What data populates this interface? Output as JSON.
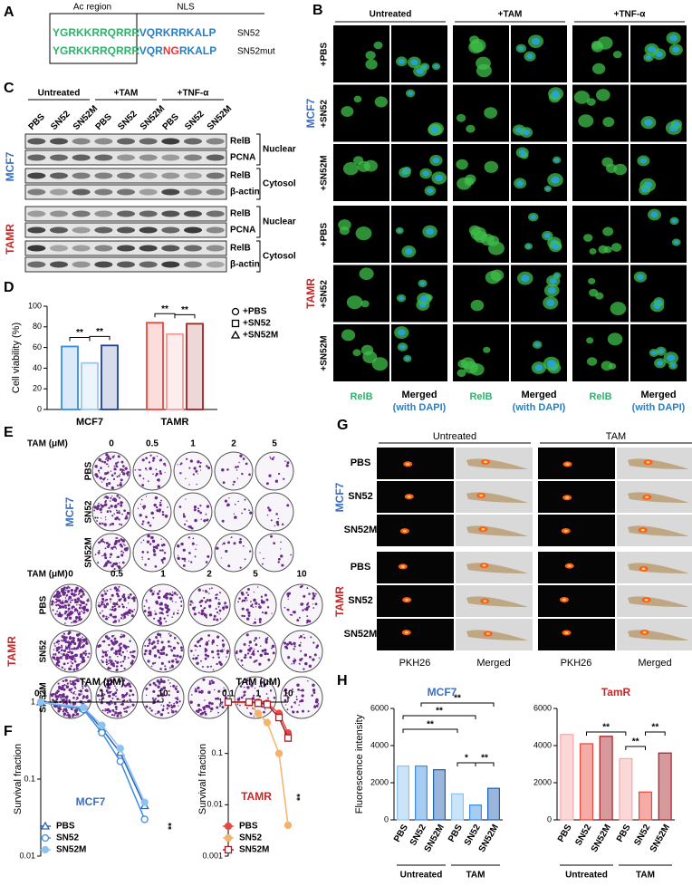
{
  "panel_letters": [
    "A",
    "B",
    "C",
    "D",
    "E",
    "F",
    "G",
    "H"
  ],
  "panel_a": {
    "region_labels": [
      "Ac region",
      "NLS"
    ],
    "sequences": [
      {
        "segments": [
          {
            "text": "YGRKKRRQRRR",
            "color": "#2db36b"
          },
          {
            "text": "VQRKRRKALP",
            "color": "#2a7fc1"
          }
        ],
        "name": "SN52"
      },
      {
        "segments": [
          {
            "text": "YGRKKRRQRRR",
            "color": "#2db36b"
          },
          {
            "text": "VQR",
            "color": "#2a7fc1"
          },
          {
            "text": "NG",
            "color": "#e53935"
          },
          {
            "text": "RKALP",
            "color": "#2a7fc1"
          }
        ],
        "name": "SN52mut"
      }
    ]
  },
  "panel_b": {
    "columns": [
      "Untreated",
      "+TAM",
      "+TNF-α"
    ],
    "cell_lines": [
      {
        "name": "MCF7",
        "color": "#3a6fc4"
      },
      {
        "name": "TAMR",
        "color": "#c62828"
      }
    ],
    "rows": [
      "+PBS",
      "+SN52",
      "+SN52M"
    ],
    "channel_labels": [
      "RelB",
      "Merged",
      "(with DAPI)"
    ]
  },
  "panel_c": {
    "groups": [
      "Untreated",
      "+TAM",
      "+TNF-α"
    ],
    "lanes": [
      "PBS",
      "SN52",
      "SN52M"
    ],
    "cell_lines": [
      {
        "name": "MCF7",
        "color": "#3a6fc4"
      },
      {
        "name": "TAMR",
        "color": "#c62828"
      }
    ],
    "bands": [
      "RelB",
      "PCNA",
      "RelB",
      "β-actin"
    ],
    "fractions": [
      "Nuclear",
      "Cytosol"
    ]
  },
  "panel_e": {
    "axis_label": "TAM (μM)",
    "blocks": [
      {
        "cell_line": "MCF7",
        "color": "#3a6fc4",
        "concentrations": [
          "0",
          "0.5",
          "1",
          "2",
          "5"
        ]
      },
      {
        "cell_line": "TAMR",
        "color": "#c62828",
        "concentrations": [
          "0",
          "0.5",
          "1",
          "2",
          "5",
          "10"
        ]
      }
    ],
    "rows": [
      "PBS",
      "SN52",
      "SN52M"
    ]
  },
  "panel_g": {
    "conditions": [
      "Untreated",
      "TAM"
    ],
    "cell_lines": [
      {
        "name": "MCF7",
        "color": "#3a6fc4"
      },
      {
        "name": "TAMR",
        "color": "#c62828"
      }
    ],
    "rows": [
      "PBS",
      "SN52",
      "SN52M"
    ],
    "channels": [
      "PKH26",
      "Merged"
    ]
  },
  "chart_data": [
    {
      "type": "bar",
      "y_label": "Cell viability (%)",
      "categories": [
        "MCF7",
        "TAMR"
      ],
      "series": [
        {
          "name": "+PBS",
          "marker": "circle",
          "colors": [
            "#3a8de0",
            "#e8473c"
          ],
          "values": [
            61,
            84
          ]
        },
        {
          "name": "+SN52",
          "marker": "square",
          "colors": [
            "#9cc6ef",
            "#f29a9a"
          ],
          "values": [
            45,
            73
          ]
        },
        {
          "name": "+SN52M",
          "marker": "triangle",
          "colors": [
            "#1f3f9a",
            "#a31f24"
          ],
          "values": [
            62,
            83
          ]
        }
      ],
      "ylim": [
        0,
        100
      ],
      "yticks": [
        0,
        20,
        40,
        60,
        80,
        100
      ],
      "annotations": [
        "**",
        "**",
        "**",
        "**"
      ]
    },
    {
      "type": "line",
      "title": "MCF7",
      "title_color": "#3a6fc4",
      "x_label": "TAM (μM)",
      "y_label": "Survival fraction",
      "log_x": true,
      "log_y": true,
      "x": [
        0.1,
        0.5,
        1,
        2,
        5
      ],
      "series": [
        {
          "name": "PBS",
          "marker": "triangle",
          "color": "#2c64b8",
          "values": [
            1,
            0.85,
            0.45,
            0.22,
            0.045
          ]
        },
        {
          "name": "SN52",
          "marker": "circle",
          "color": "#3b8ee0",
          "values": [
            1,
            0.8,
            0.4,
            0.17,
            0.03
          ]
        },
        {
          "name": "SN52M",
          "marker": "dot",
          "color": "#8ec3f0",
          "values": [
            1,
            0.85,
            0.5,
            0.25,
            0.05
          ]
        }
      ],
      "xlim": [
        0.1,
        10
      ],
      "xticks": [
        0.1,
        1,
        10
      ],
      "ylim": [
        0.01,
        1
      ],
      "yticks": [
        0.01,
        0.1,
        1
      ],
      "annotations": [
        "**"
      ]
    },
    {
      "type": "line",
      "title": "TAMR",
      "title_color": "#c62828",
      "x_label": "TAM (μM)",
      "y_label": "Survival fraction",
      "log_x": true,
      "log_y": true,
      "x": [
        0.1,
        0.5,
        1,
        2,
        5,
        10
      ],
      "series": [
        {
          "name": "PBS",
          "marker": "dot",
          "color": "#e8473c",
          "values": [
            1,
            1,
            1,
            0.95,
            0.6,
            0.25
          ]
        },
        {
          "name": "SN52",
          "marker": "dot",
          "color": "#f5b26b",
          "values": [
            1,
            0.95,
            0.6,
            0.4,
            0.1,
            0.004
          ]
        },
        {
          "name": "SN52M",
          "marker": "square",
          "color": "#a31f24",
          "values": [
            1,
            1,
            0.95,
            0.9,
            0.5,
            0.2
          ]
        }
      ],
      "xlim": [
        0.1,
        10
      ],
      "xticks": [
        0.1,
        1,
        10
      ],
      "ylim": [
        0.001,
        1
      ],
      "yticks": [
        0.001,
        0.01,
        0.1,
        1
      ],
      "annotations": [
        "**"
      ]
    },
    {
      "type": "dotbar",
      "title": "MCF7",
      "title_color": "#3a6fc4",
      "y_label": "Fluorescence intensity",
      "categories": [
        "PBS",
        "SN52",
        "SN52M",
        "PBS",
        "SN52",
        "SN52M"
      ],
      "values": [
        2900,
        2900,
        2700,
        1400,
        800,
        1700
      ],
      "colors": [
        "#8ec3f0",
        "#3b8ee0",
        "#1f5fb0",
        "#8ec3f0",
        "#3b8ee0",
        "#1f5fb0"
      ],
      "groups": [
        "Untreated",
        "TAM"
      ],
      "ylim": [
        0,
        6000
      ],
      "yticks": [
        0,
        2000,
        4000,
        6000
      ],
      "annotations": [
        "**",
        "**",
        "**",
        "*",
        "**"
      ]
    },
    {
      "type": "dotbar",
      "title": "TamR",
      "title_color": "#c62828",
      "categories": [
        "PBS",
        "SN52",
        "SN52M",
        "PBS",
        "SN52",
        "SN52M"
      ],
      "values": [
        4600,
        4100,
        4500,
        3300,
        1500,
        3600
      ],
      "colors": [
        "#f5a8a8",
        "#e8473c",
        "#a31f24",
        "#f5a8a8",
        "#e8473c",
        "#a31f24"
      ],
      "groups": [
        "Untreated",
        "TAM"
      ],
      "ylim": [
        0,
        6000
      ],
      "yticks": [
        0,
        2000,
        4000,
        6000
      ],
      "annotations": [
        "**",
        "**",
        "**"
      ]
    }
  ]
}
